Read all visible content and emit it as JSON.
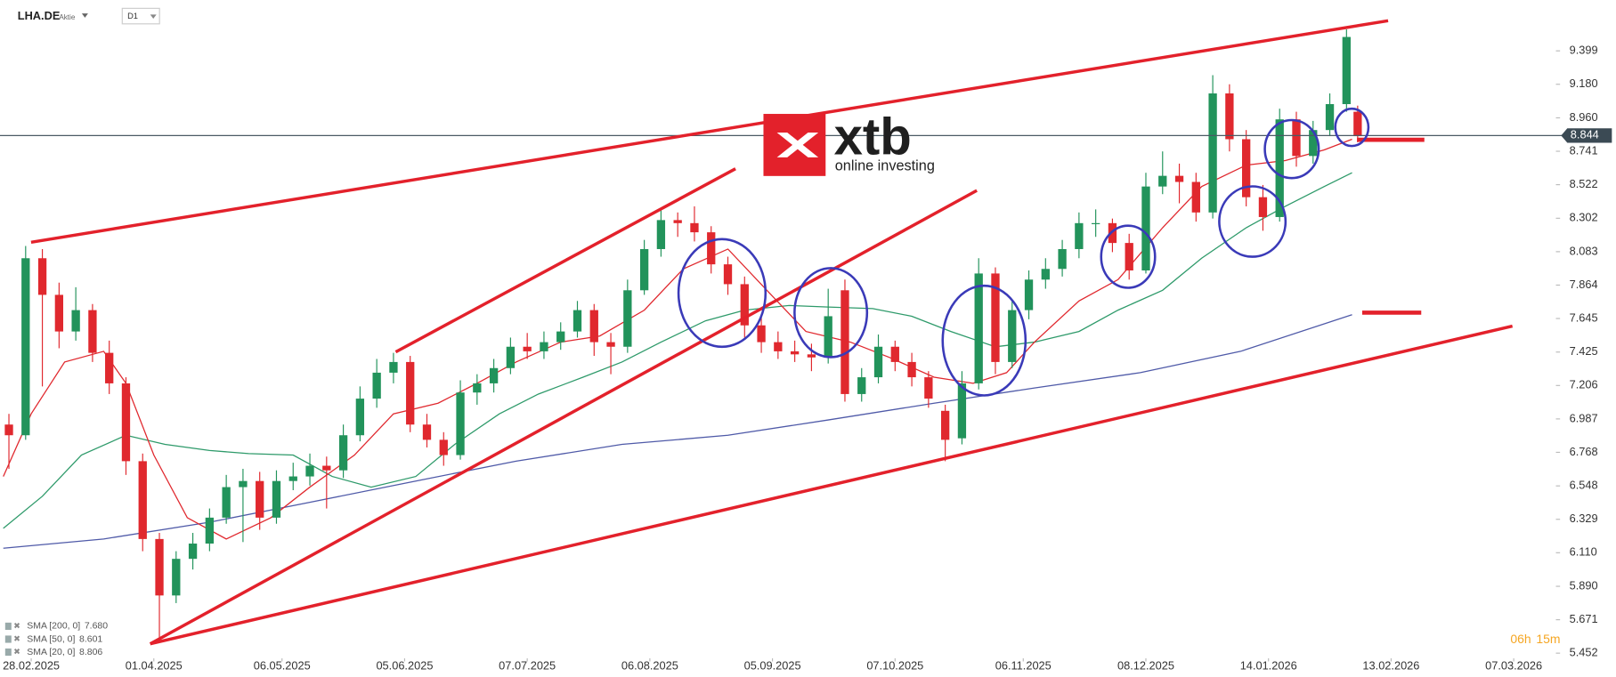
{
  "header": {
    "symbol": "LHA.DE",
    "kind": "Aktie",
    "timeframe": "D1"
  },
  "logo": {
    "brand": "xtb",
    "tagline": "online investing"
  },
  "countdown": {
    "hours": "06h",
    "minutes": "15m"
  },
  "chart_data": {
    "type": "candlestick",
    "up_color": "#22935b",
    "down_color": "#e0282e",
    "xlim": [
      -5.6,
      273.2
    ],
    "ylim": [
      5.418,
      9.732
    ],
    "xticks": [
      {
        "value": 0,
        "label": "28.02.2025"
      },
      {
        "value": 22,
        "label": "01.04.2025"
      },
      {
        "value": 45,
        "label": "06.05.2025"
      },
      {
        "value": 67,
        "label": "05.06.2025"
      },
      {
        "value": 89,
        "label": "07.07.2025"
      },
      {
        "value": 111,
        "label": "06.08.2025"
      },
      {
        "value": 133,
        "label": "05.09.2025"
      },
      {
        "value": 155,
        "label": "07.10.2025"
      },
      {
        "value": 178,
        "label": "06.11.2025"
      },
      {
        "value": 200,
        "label": "08.12.2025"
      },
      {
        "value": 222,
        "label": "14.01.2026"
      },
      {
        "value": 244,
        "label": "13.02.2026"
      },
      {
        "value": 266,
        "label": "07.03.2026"
      }
    ],
    "yticks": [
      9.399,
      {
        "value": 9.18,
        "label": "9.180"
      },
      {
        "value": 8.96,
        "label": "8.960"
      },
      8.741,
      8.522,
      8.302,
      8.083,
      7.864,
      7.645,
      7.425,
      7.206,
      6.987,
      6.768,
      6.548,
      6.329,
      {
        "value": 6.11,
        "label": "6.110"
      },
      {
        "value": 5.89,
        "label": "5.890"
      },
      5.671,
      5.452
    ],
    "current_price": {
      "value": 8.844,
      "label": "8.844"
    },
    "candles": [
      [
        -4,
        6.95,
        7.02,
        6.66,
        6.88
      ],
      [
        -1,
        6.88,
        8.12,
        6.85,
        8.04
      ],
      [
        2,
        8.04,
        8.1,
        7.2,
        7.8
      ],
      [
        5,
        7.8,
        7.88,
        7.45,
        7.56
      ],
      [
        8,
        7.56,
        7.85,
        7.5,
        7.7
      ],
      [
        11,
        7.7,
        7.74,
        7.36,
        7.42
      ],
      [
        14,
        7.42,
        7.5,
        7.15,
        7.22
      ],
      [
        17,
        7.22,
        7.26,
        6.62,
        6.71
      ],
      [
        20,
        6.71,
        6.76,
        6.12,
        6.2
      ],
      [
        23,
        6.2,
        6.24,
        5.53,
        5.83
      ],
      [
        26,
        5.83,
        6.12,
        5.78,
        6.07
      ],
      [
        29,
        6.07,
        6.24,
        6.0,
        6.17
      ],
      [
        32,
        6.17,
        6.4,
        6.12,
        6.34
      ],
      [
        35,
        6.34,
        6.62,
        6.3,
        6.54
      ],
      [
        38,
        6.54,
        6.66,
        6.18,
        6.58
      ],
      [
        41,
        6.58,
        6.64,
        6.26,
        6.34
      ],
      [
        44,
        6.34,
        6.65,
        6.3,
        6.58
      ],
      [
        47,
        6.58,
        6.7,
        6.52,
        6.61
      ],
      [
        50,
        6.61,
        6.76,
        6.55,
        6.68
      ],
      [
        53,
        6.68,
        6.74,
        6.4,
        6.65
      ],
      [
        56,
        6.65,
        6.95,
        6.6,
        6.88
      ],
      [
        59,
        6.88,
        7.2,
        6.84,
        7.12
      ],
      [
        62,
        7.12,
        7.38,
        7.06,
        7.29
      ],
      [
        65,
        7.29,
        7.42,
        7.22,
        7.36
      ],
      [
        68,
        7.36,
        7.4,
        6.9,
        6.95
      ],
      [
        71,
        6.95,
        7.02,
        6.8,
        6.85
      ],
      [
        74,
        6.85,
        6.9,
        6.68,
        6.75
      ],
      [
        77,
        6.75,
        7.24,
        6.72,
        7.16
      ],
      [
        80,
        7.16,
        7.28,
        7.08,
        7.22
      ],
      [
        83,
        7.22,
        7.38,
        7.16,
        7.32
      ],
      [
        86,
        7.32,
        7.52,
        7.28,
        7.46
      ],
      [
        89,
        7.46,
        7.55,
        7.38,
        7.43
      ],
      [
        92,
        7.43,
        7.56,
        7.38,
        7.49
      ],
      [
        95,
        7.49,
        7.62,
        7.44,
        7.56
      ],
      [
        98,
        7.56,
        7.76,
        7.52,
        7.7
      ],
      [
        101,
        7.7,
        7.74,
        7.4,
        7.49
      ],
      [
        104,
        7.49,
        7.55,
        7.28,
        7.46
      ],
      [
        107,
        7.46,
        7.9,
        7.42,
        7.83
      ],
      [
        110,
        7.83,
        8.16,
        7.8,
        8.1
      ],
      [
        113,
        8.1,
        8.36,
        8.05,
        8.29
      ],
      [
        116,
        8.29,
        8.34,
        8.18,
        8.27
      ],
      [
        119,
        8.27,
        8.38,
        8.15,
        8.21
      ],
      [
        122,
        8.21,
        8.25,
        7.94,
        8.0
      ],
      [
        125,
        8.0,
        8.05,
        7.8,
        7.87
      ],
      [
        128,
        7.87,
        7.92,
        7.52,
        7.6
      ],
      [
        131,
        7.6,
        7.66,
        7.42,
        7.49
      ],
      [
        134,
        7.49,
        7.56,
        7.38,
        7.43
      ],
      [
        137,
        7.43,
        7.5,
        7.36,
        7.41
      ],
      [
        140,
        7.41,
        7.48,
        7.3,
        7.39
      ],
      [
        143,
        7.39,
        7.84,
        7.35,
        7.66
      ],
      [
        146,
        7.83,
        7.9,
        7.1,
        7.15
      ],
      [
        149,
        7.15,
        7.32,
        7.1,
        7.26
      ],
      [
        152,
        7.26,
        7.54,
        7.22,
        7.46
      ],
      [
        155,
        7.46,
        7.5,
        7.3,
        7.36
      ],
      [
        158,
        7.36,
        7.42,
        7.2,
        7.26
      ],
      [
        161,
        7.26,
        7.3,
        7.06,
        7.12
      ],
      [
        164,
        7.04,
        7.08,
        6.71,
        6.85
      ],
      [
        167,
        6.86,
        7.3,
        6.82,
        7.22
      ],
      [
        170,
        7.22,
        8.04,
        7.18,
        7.94
      ],
      [
        173,
        7.94,
        7.98,
        7.28,
        7.36
      ],
      [
        176,
        7.36,
        7.76,
        7.32,
        7.7
      ],
      [
        179,
        7.7,
        7.96,
        7.64,
        7.9
      ],
      [
        182,
        7.9,
        8.04,
        7.84,
        7.97
      ],
      [
        185,
        7.97,
        8.16,
        7.92,
        8.1
      ],
      [
        188,
        8.1,
        8.34,
        8.04,
        8.27
      ],
      [
        191,
        8.27,
        8.36,
        8.18,
        8.27
      ],
      [
        194,
        8.27,
        8.3,
        8.08,
        8.14
      ],
      [
        197,
        8.14,
        8.2,
        7.9,
        7.96
      ],
      [
        200,
        7.96,
        8.6,
        7.94,
        8.51
      ],
      [
        203,
        8.51,
        8.74,
        8.46,
        8.58
      ],
      [
        206,
        8.58,
        8.66,
        8.4,
        8.54
      ],
      [
        209,
        8.54,
        8.6,
        8.28,
        8.34
      ],
      [
        212,
        8.34,
        9.24,
        8.3,
        9.12
      ],
      [
        215,
        9.12,
        9.18,
        8.74,
        8.82
      ],
      [
        218,
        8.82,
        8.88,
        8.38,
        8.44
      ],
      [
        221,
        8.44,
        8.52,
        8.22,
        8.31
      ],
      [
        224,
        8.31,
        9.02,
        8.28,
        8.95
      ],
      [
        227,
        8.95,
        9.0,
        8.64,
        8.71
      ],
      [
        230,
        8.71,
        8.94,
        8.66,
        8.88
      ],
      [
        233,
        8.88,
        9.12,
        8.84,
        9.05
      ],
      [
        236,
        9.05,
        9.54,
        9.0,
        9.49
      ],
      [
        238,
        9.0,
        9.04,
        8.8,
        8.84
      ]
    ],
    "series": [
      {
        "name": "SMA [200, 0]",
        "color": "#4f5aa8",
        "last": {
          "value": 7.68,
          "label": "7.680"
        },
        "x": [
          -5,
          13,
          32,
          50,
          69,
          87,
          106,
          125,
          143,
          162,
          180,
          199,
          217,
          237
        ],
        "values": [
          6.14,
          6.2,
          6.31,
          6.44,
          6.58,
          6.71,
          6.82,
          6.88,
          6.98,
          7.09,
          7.19,
          7.29,
          7.43,
          7.67
        ]
      },
      {
        "name": "SMA [50, 0]",
        "color": "#2e9a6a",
        "last": {
          "value": 8.601,
          "label": "8.601"
        },
        "x": [
          -5,
          2,
          9,
          17,
          24,
          32,
          39,
          47,
          54,
          61,
          69,
          76,
          84,
          91,
          99,
          106,
          113,
          121,
          128,
          136,
          143,
          151,
          158,
          165,
          173,
          180,
          188,
          195,
          203,
          210,
          218,
          225,
          232,
          237
        ],
        "values": [
          6.27,
          6.48,
          6.75,
          6.88,
          6.82,
          6.78,
          6.76,
          6.75,
          6.61,
          6.54,
          6.61,
          6.82,
          7.02,
          7.15,
          7.26,
          7.36,
          7.49,
          7.63,
          7.7,
          7.73,
          7.72,
          7.71,
          7.66,
          7.56,
          7.46,
          7.49,
          7.56,
          7.7,
          7.83,
          8.04,
          8.24,
          8.38,
          8.51,
          8.6
        ]
      },
      {
        "name": "SMA [20, 0]",
        "color": "#e0282e",
        "last": {
          "value": 8.806,
          "label": "8.806"
        },
        "x": [
          -5,
          0,
          6,
          13,
          17,
          22,
          28,
          35,
          43,
          50,
          58,
          65,
          73,
          80,
          87,
          95,
          102,
          110,
          117,
          125,
          132,
          139,
          147,
          154,
          162,
          169,
          175,
          180,
          188,
          195,
          203,
          210,
          218,
          225,
          232,
          237
        ],
        "values": [
          6.61,
          7.02,
          7.36,
          7.43,
          7.22,
          6.75,
          6.34,
          6.2,
          6.34,
          6.54,
          6.75,
          7.02,
          7.09,
          7.22,
          7.36,
          7.49,
          7.53,
          7.7,
          7.97,
          8.1,
          7.83,
          7.56,
          7.49,
          7.39,
          7.26,
          7.22,
          7.29,
          7.49,
          7.76,
          7.9,
          8.24,
          8.51,
          8.65,
          8.68,
          8.75,
          8.82
        ]
      }
    ]
  }
}
